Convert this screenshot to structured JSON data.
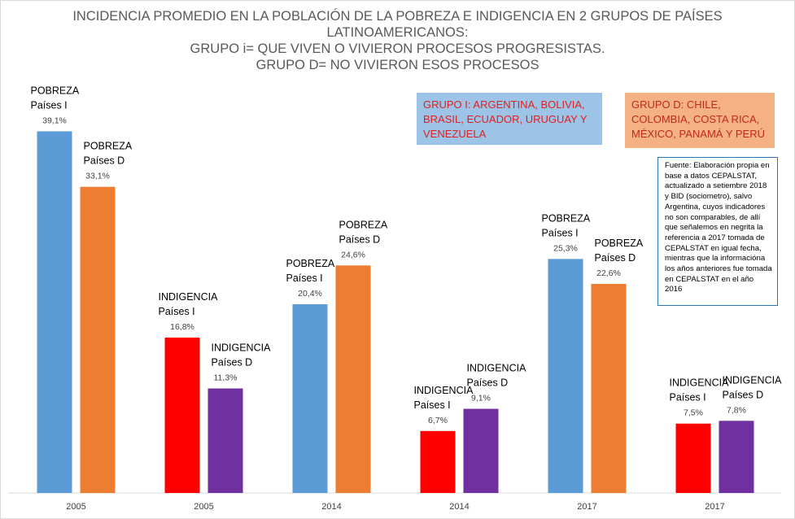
{
  "title_lines": [
    "INCIDENCIA PROMEDIO EN LA POBLACIÓN DE LA POBREZA E  INDIGENCIA EN 2 GRUPOS DE PAÍSES",
    "LATINOAMERICANOS:",
    "GRUPO i= QUE VIVEN O VIVIERON PROCESOS PROGRESISTAS.",
    "GRUPO D= NO VIVIERON ESOS PROCESOS"
  ],
  "group_i_box": "GRUPO I: ARGENTINA, BOLIVIA, BRASIL, ECUADOR, URUGUAY Y VENEZUELA",
  "group_d_box": "GRUPO D: CHILE, COLOMBIA, COSTA RICA, MÉXICO, PANAMÁ Y PERÚ",
  "source_note": "Fuente: Elaboración propia en base a datos CEPALSTAT, actualizado a setiembre 2018 y BID (sociometro), salvo Argentina, cuyos indicadores no son comparables, de allí que señalemos en negrita la referencia a 2017 tomada de CEPALSTAT en igual fecha, mientras que la informacióna los años anteriores fue tomada en CEPALSTAT en el año 2016",
  "colors": {
    "pobreza_i": "#5b9bd5",
    "pobreza_d": "#ed7d31",
    "indigencia_i": "#ff0000",
    "indigencia_d": "#7030a0",
    "axis": "#d9d9d9",
    "text": "#404040"
  },
  "chart_data": {
    "type": "bar",
    "title": "INCIDENCIA PROMEDIO EN LA POBLACIÓN DE LA POBREZA E  INDIGENCIA EN 2 GRUPOS DE PAÍSES LATINOAMERICANOS: GRUPO i= QUE VIVEN O VIVIERON PROCESOS PROGRESISTAS. GRUPO D= NO VIVIERON ESOS PROCESOS",
    "categories": [
      "2005",
      "2005",
      "2014",
      "2014",
      "2017",
      "2017"
    ],
    "ylim": [
      0,
      40
    ],
    "grid": false,
    "bars": [
      {
        "category": 0,
        "slot": 0,
        "value": 39.1,
        "value_label": "39,1%",
        "series": [
          "POBREZA",
          "Países I"
        ],
        "color_key": "pobreza_i"
      },
      {
        "category": 0,
        "slot": 1,
        "value": 33.1,
        "value_label": "33,1%",
        "series": [
          "POBREZA",
          "Países D"
        ],
        "color_key": "pobreza_d"
      },
      {
        "category": 1,
        "slot": 0,
        "value": 16.8,
        "value_label": "16,8%",
        "series": [
          "INDIGENCIA",
          "Países I"
        ],
        "color_key": "indigencia_i"
      },
      {
        "category": 1,
        "slot": 1,
        "value": 11.3,
        "value_label": "11,3%",
        "series": [
          "INDIGENCIA",
          "Países D"
        ],
        "color_key": "indigencia_d"
      },
      {
        "category": 2,
        "slot": 0,
        "value": 20.4,
        "value_label": "20,4%",
        "series": [
          "POBREZA",
          "Países I"
        ],
        "color_key": "pobreza_i"
      },
      {
        "category": 2,
        "slot": 1,
        "value": 24.6,
        "value_label": "24,6%",
        "series": [
          "POBREZA",
          "Países D"
        ],
        "color_key": "pobreza_d"
      },
      {
        "category": 3,
        "slot": 0,
        "value": 6.7,
        "value_label": "6,7%",
        "series": [
          "INDIGENCIA",
          "Países I"
        ],
        "color_key": "indigencia_i"
      },
      {
        "category": 3,
        "slot": 1,
        "value": 9.1,
        "value_label": "9,1%",
        "series": [
          "INDIGENCIA",
          "Países D"
        ],
        "color_key": "indigencia_d"
      },
      {
        "category": 4,
        "slot": 0,
        "value": 25.3,
        "value_label": "25,3%",
        "series": [
          "POBREZA",
          "Países I"
        ],
        "color_key": "pobreza_i"
      },
      {
        "category": 4,
        "slot": 1,
        "value": 22.6,
        "value_label": "22,6%",
        "series": [
          "POBREZA",
          "Países D"
        ],
        "color_key": "pobreza_d"
      },
      {
        "category": 5,
        "slot": 0,
        "value": 7.5,
        "value_label": "7,5%",
        "series": [
          "INDIGENCIA",
          "Países I"
        ],
        "color_key": "indigencia_i"
      },
      {
        "category": 5,
        "slot": 1,
        "value": 7.8,
        "value_label": "7,8%",
        "series": [
          "INDIGENCIA",
          "Países D"
        ],
        "color_key": "indigencia_d"
      }
    ]
  }
}
